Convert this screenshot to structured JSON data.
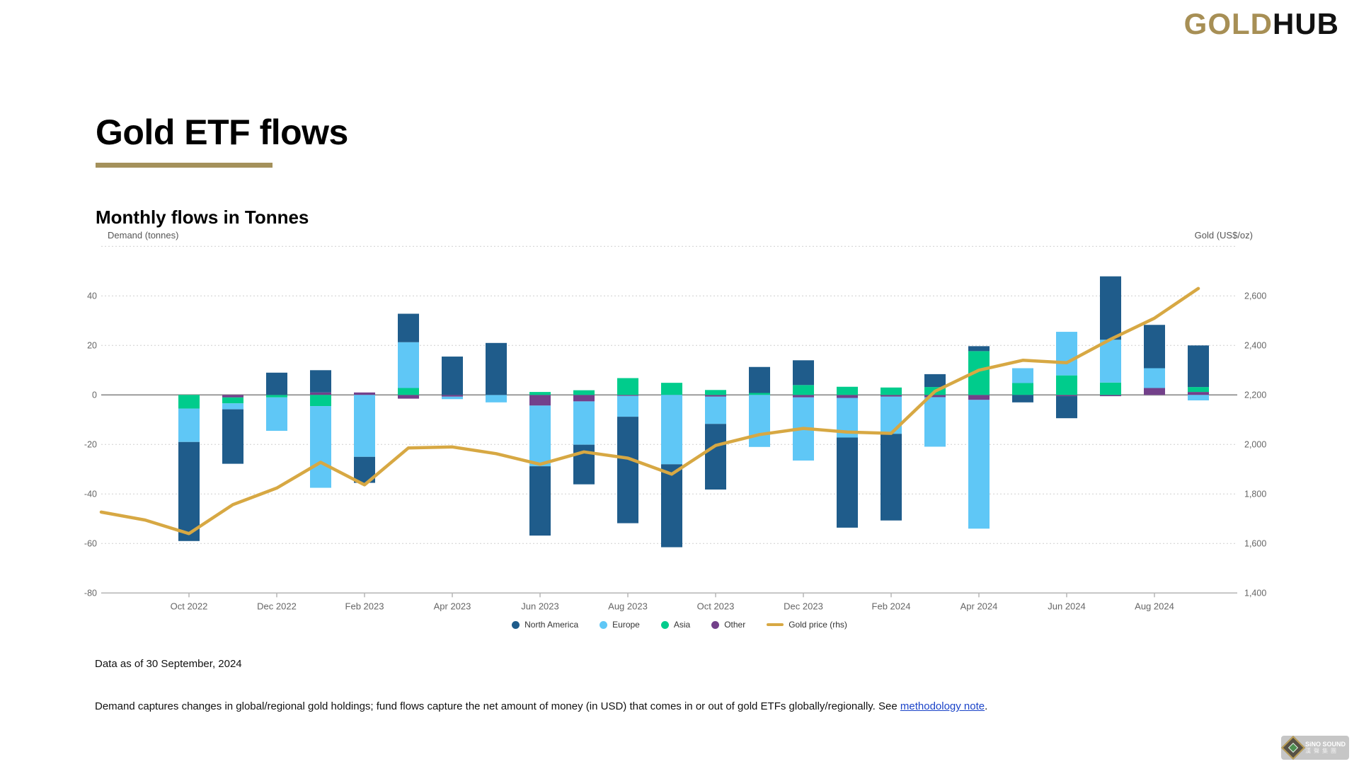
{
  "logo": {
    "gold": "GOLD",
    "hub": "HUB"
  },
  "page_title": "Gold ETF flows",
  "section_title": "Monthly flows in Tonnes",
  "footer": {
    "data_as_of": "Data as of 30 September, 2024",
    "note_before_link": "Demand captures changes in global/regional gold holdings; fund flows capture the net amount of money (in USD) that comes in or out of gold ETFs globally/regionally. See ",
    "note_link": "methodology note",
    "note_after_link": "."
  },
  "watermark": {
    "line1": "SiNO SOUND",
    "line2": "漢聲集團"
  },
  "chart_data": {
    "type": "bar",
    "subtype": "stacked-bars-with-line",
    "title": "Monthly flows in Tonnes",
    "grid": true,
    "legend_position": "bottom-center",
    "left_axis": {
      "title": "Demand (tonnes)",
      "ticks": [
        40,
        20,
        0,
        -20,
        -40,
        -60,
        -80
      ],
      "range": [
        -80,
        60
      ]
    },
    "right_axis": {
      "title": "Gold (US$/oz)",
      "ticks": [
        "2,600",
        "2,400",
        "2,200",
        "2,000",
        "1,800",
        "1,600",
        "1,400"
      ],
      "range": [
        1400,
        2800
      ]
    },
    "x_tick_labels": [
      "Oct 2022",
      "Dec 2022",
      "Feb 2023",
      "Apr 2023",
      "Jun 2023",
      "Aug 2023",
      "Oct 2023",
      "Dec 2023",
      "Feb 2024",
      "Apr 2024",
      "Jun 2024",
      "Aug 2024"
    ],
    "categories": [
      "Oct 2022",
      "Nov 2022",
      "Dec 2022",
      "Jan 2023",
      "Feb 2023",
      "Mar 2023",
      "Apr 2023",
      "May 2023",
      "Jun 2023",
      "Jul 2023",
      "Aug 2023",
      "Sep 2023",
      "Oct 2023",
      "Nov 2023",
      "Dec 2023",
      "Jan 2024",
      "Feb 2024",
      "Mar 2024",
      "Apr 2024",
      "May 2024",
      "Jun 2024",
      "Jul 2024",
      "Aug 2024",
      "Sep 2024"
    ],
    "series": [
      {
        "name": "North America",
        "color": "#1F5C8B",
        "values": [
          -40,
          -22,
          9,
          9,
          -10.5,
          11.5,
          15.5,
          21,
          -28,
          -16,
          -43,
          -33.5,
          -26.5,
          10.5,
          10,
          -36.4,
          -35,
          5.2,
          2,
          -3,
          -8.9,
          25.6,
          17.5,
          16.8
        ]
      },
      {
        "name": "Europe",
        "color": "#5FC7F6",
        "values": [
          -13.5,
          -2.4,
          -13.5,
          -33,
          -25,
          18.5,
          -1,
          -3,
          -24.5,
          -17.5,
          -8.4,
          -28,
          -11,
          -21,
          -25.5,
          -16,
          -15,
          -20,
          -52,
          6,
          17.6,
          17.3,
          8,
          -2.2
        ]
      },
      {
        "name": "Asia",
        "color": "#00CC8C",
        "values": [
          -5.5,
          -2.4,
          -1,
          -4.5,
          0,
          2.8,
          0,
          0,
          1.2,
          1.9,
          6.8,
          4.9,
          2,
          0.8,
          4,
          3.3,
          3,
          3.2,
          17.7,
          4.8,
          7.9,
          5,
          0,
          2
        ]
      },
      {
        "name": "Other",
        "color": "#73408A",
        "values": [
          0,
          -1,
          0,
          1,
          1,
          -1.5,
          -0.7,
          0,
          -4.3,
          -2.6,
          -0.4,
          0,
          -0.7,
          0,
          -1,
          -1.2,
          -0.7,
          -0.9,
          -2,
          0,
          -0.5,
          -0.5,
          2.8,
          1.2
        ]
      }
    ],
    "line": {
      "name": "Gold price (rhs)",
      "color": "#D7A843",
      "axis": "right",
      "x": [
        "Aug 2022",
        "Sep 2022",
        "Oct 2022",
        "Nov 2022",
        "Dec 2022",
        "Jan 2023",
        "Feb 2023",
        "Mar 2023",
        "Apr 2023",
        "May 2023",
        "Jun 2023",
        "Jul 2023",
        "Aug 2023",
        "Sep 2023",
        "Oct 2023",
        "Nov 2023",
        "Dec 2023",
        "Jan 2024",
        "Feb 2024",
        "Mar 2024",
        "Apr 2024",
        "May 2024",
        "Jun 2024",
        "Jul 2024",
        "Aug 2024",
        "Sep 2024"
      ],
      "values": [
        1727,
        1695,
        1640,
        1757,
        1824,
        1928,
        1837,
        1986,
        1990,
        1963,
        1920,
        1970,
        1945,
        1880,
        1996,
        2040,
        2065,
        2050,
        2045,
        2215,
        2300,
        2340,
        2330,
        2425,
        2510,
        2630
      ]
    },
    "colors": {
      "grid": "#CFCFCF",
      "zero_line": "#9B9B9B",
      "axis_line": "#B5B5B5",
      "tick_text": "#666",
      "accent_gold": "#A4915B"
    }
  }
}
